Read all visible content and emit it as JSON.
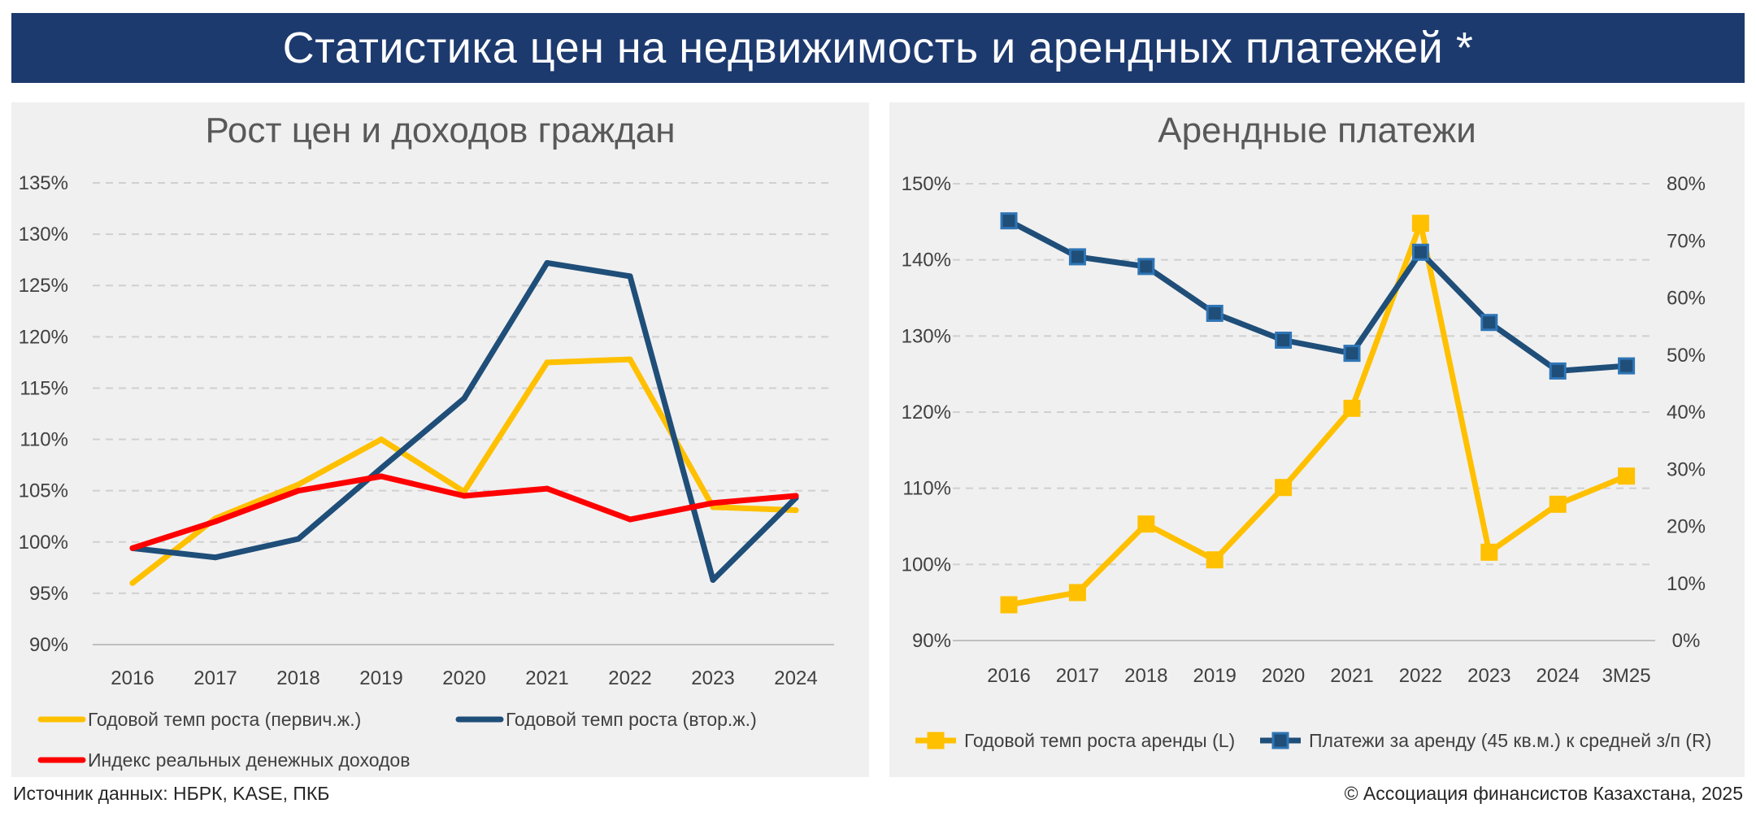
{
  "header": {
    "title": "Статистика цен на недвижимость и арендных платежей *"
  },
  "footer": {
    "source": "Источник данных: НБРК, KASE, ПКБ",
    "copyright": "© Ассоциация финансистов Казахстана, 2025"
  },
  "colors": {
    "banner": "#1d3a6e",
    "yellow": "#ffc000",
    "navy": "#1f4e79",
    "red": "#ff0000"
  },
  "chart_data": [
    {
      "type": "line",
      "title": "Рост цен и доходов граждан",
      "categories": [
        "2016",
        "2017",
        "2018",
        "2019",
        "2020",
        "2021",
        "2022",
        "2023",
        "2024"
      ],
      "ylim": [
        90,
        135
      ],
      "yticks": [
        "90%",
        "95%",
        "100%",
        "105%",
        "110%",
        "115%",
        "120%",
        "125%",
        "130%",
        "135%"
      ],
      "grid": true,
      "legend_position": "bottom",
      "series": [
        {
          "name": "Годовой темп роста (первич.ж.)",
          "color": "#ffc000",
          "values": [
            96.0,
            102.3,
            105.6,
            110.0,
            104.9,
            117.5,
            117.8,
            103.4,
            103.1
          ]
        },
        {
          "name": "Годовой темп роста (втор.ж.)",
          "color": "#1f4e79",
          "values": [
            99.4,
            98.5,
            100.3,
            107.2,
            114.0,
            127.2,
            125.9,
            96.3,
            104.3
          ]
        },
        {
          "name": "Индекс реальных денежных доходов",
          "color": "#ff0000",
          "values": [
            99.4,
            102.0,
            105.0,
            106.4,
            104.5,
            105.2,
            102.2,
            103.8,
            104.5
          ]
        }
      ]
    },
    {
      "type": "line",
      "title": "Арендные платежи",
      "categories": [
        "2016",
        "2017",
        "2018",
        "2019",
        "2020",
        "2021",
        "2022",
        "2023",
        "2024",
        "3M25"
      ],
      "ylim_left": [
        90,
        150
      ],
      "ylim_right": [
        0,
        80
      ],
      "yticks_left": [
        "90%",
        "100%",
        "110%",
        "120%",
        "130%",
        "140%",
        "150%"
      ],
      "yticks_right": [
        "0%",
        "10%",
        "20%",
        "30%",
        "40%",
        "50%",
        "60%",
        "70%",
        "80%"
      ],
      "grid": true,
      "legend_position": "bottom",
      "series": [
        {
          "name": "Годовой темп роста аренды (L)",
          "axis": "left",
          "color": "#ffc000",
          "marker": "square",
          "values": [
            94.7,
            96.3,
            105.3,
            100.6,
            110.1,
            120.5,
            144.8,
            101.6,
            107.9,
            111.6
          ]
        },
        {
          "name": "Платежи за аренду (45 кв.м.) к средней з/п (R)",
          "axis": "right",
          "color": "#1f4e79",
          "marker": "square",
          "values": [
            73.5,
            67.2,
            65.5,
            57.3,
            52.6,
            50.3,
            68.0,
            55.7,
            47.2,
            48.1
          ]
        }
      ]
    }
  ]
}
